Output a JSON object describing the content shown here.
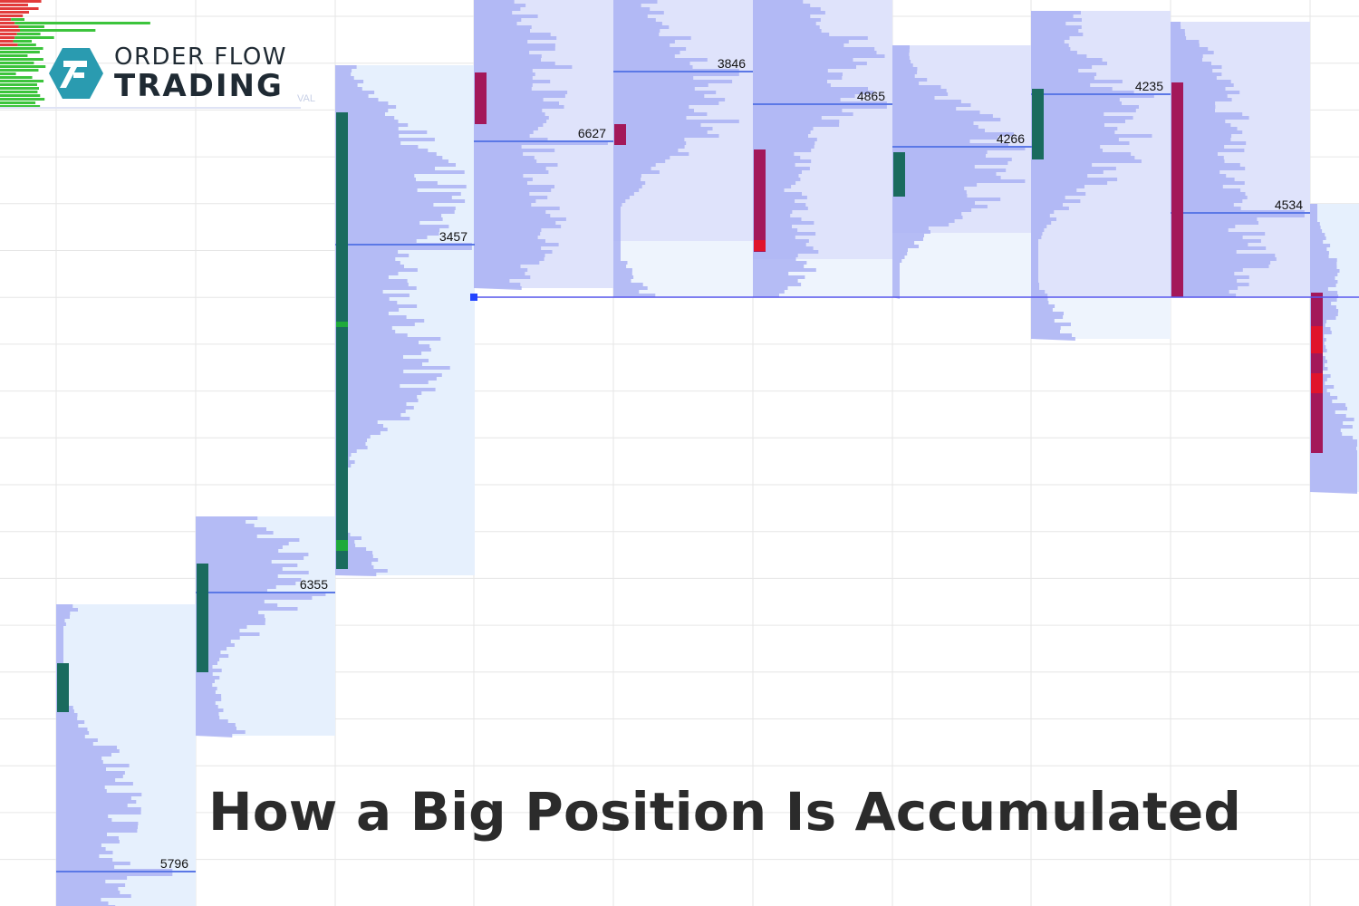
{
  "brand": {
    "line1": "ORDER FLOW",
    "line2": "TRADING",
    "teal": "#2a9bb0",
    "icon": "order-flow-logo-icon"
  },
  "headline": "How a Big Position Is Accumulated",
  "val_label": "VAL",
  "colors": {
    "profile": "#aab1f3",
    "value_area": "#e6f0fd",
    "value_area_upper": "#dfe3fb",
    "poc_line": "#5b78e6",
    "bull": "#1a6b5e",
    "bear": "#a3185a",
    "level_line": "#5858ee",
    "grid": "#e6e6e6"
  },
  "chart_data": {
    "type": "volume-profile",
    "title": "",
    "xlabel": "",
    "ylabel": "",
    "series": [
      {
        "poc": 5796,
        "candle": "bull"
      },
      {
        "poc": 6355,
        "candle": "bull"
      },
      {
        "poc": 3457,
        "candle": "bull"
      },
      {
        "poc": 6627,
        "candle": "bear"
      },
      {
        "poc": 3846,
        "candle": "bear"
      },
      {
        "poc": 4865,
        "candle": "bear"
      },
      {
        "poc": 4266,
        "candle": "bull"
      },
      {
        "poc": 4235,
        "candle": "bull"
      },
      {
        "poc": 4534,
        "candle": "bear"
      },
      {
        "poc": null,
        "candle": "bear"
      }
    ]
  }
}
